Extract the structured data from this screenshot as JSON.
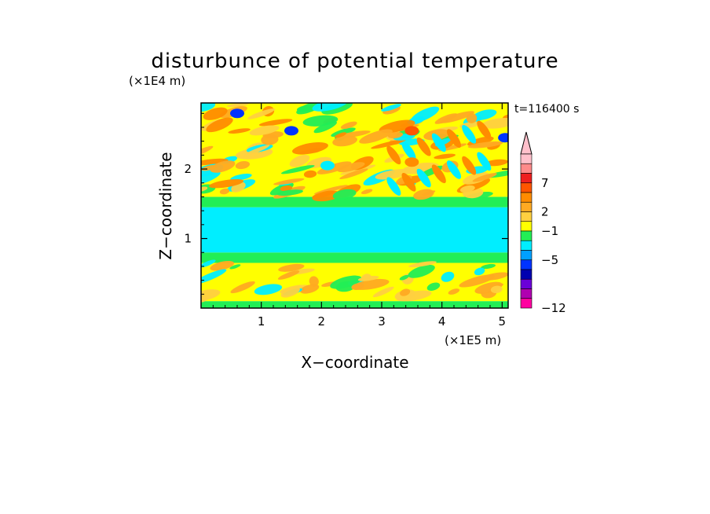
{
  "chart_data": {
    "type": "heatmap",
    "title": "disturbunce of potential temperature",
    "time_label": "t=116400 s",
    "xlabel": "X−coordinate",
    "ylabel": "Z−coordinate",
    "x_unit": "(×1E5 m)",
    "y_unit": "(×1E4 m)",
    "xlim": [
      0,
      5.1
    ],
    "ylim": [
      0,
      2.95
    ],
    "x_ticks": [
      1,
      2,
      3,
      4,
      5
    ],
    "y_ticks": [
      1,
      2
    ],
    "x_tick_labels": [
      "1",
      "2",
      "3",
      "4",
      "5"
    ],
    "y_tick_labels": [
      "1",
      "2"
    ],
    "colorbar": {
      "labeled_ticks": [
        {
          "value": 7,
          "label": "7"
        },
        {
          "value": 2,
          "label": "2"
        },
        {
          "value": -1,
          "label": "−1"
        },
        {
          "value": -5,
          "label": "−5"
        },
        {
          "value": -12,
          "label": "−12"
        }
      ],
      "colors_top_to_bottom": [
        "#ffc0cb",
        "#ff8a8a",
        "#ee2020",
        "#ff5500",
        "#ff8c00",
        "#ffaa22",
        "#ffd040",
        "#ffff00",
        "#22ee55",
        "#00eeff",
        "#00a0ff",
        "#0033ff",
        "#0000b0",
        "#6a00d8",
        "#b000b0",
        "#ff00a0"
      ],
      "extend_arrow_color": "#ffc0cb"
    },
    "layers": [
      {
        "z_range": [
          0.0,
          0.1
        ],
        "dominant": "#22ee55"
      },
      {
        "z_range": [
          0.1,
          0.65
        ],
        "dominant": "#ffff00"
      },
      {
        "z_range": [
          0.65,
          0.8
        ],
        "dominant": "#22ee55"
      },
      {
        "z_range": [
          0.8,
          1.45
        ],
        "dominant": "#00eeff"
      },
      {
        "z_range": [
          1.45,
          1.6
        ],
        "dominant": "#22ee55"
      },
      {
        "z_range": [
          1.6,
          2.95
        ],
        "dominant": "#ffff00"
      }
    ],
    "notable_features": [
      {
        "x": 0.6,
        "z": 2.8,
        "value_color": "#0033ff"
      },
      {
        "x": 1.5,
        "z": 2.55,
        "value_color": "#0033ff"
      },
      {
        "x": 5.05,
        "z": 2.45,
        "value_color": "#0033ff"
      },
      {
        "x": 3.5,
        "z": 2.55,
        "value_color": "#ff5500"
      },
      {
        "x": 3.5,
        "z": 2.1,
        "value_color": "#ff8c00"
      },
      {
        "x": 2.1,
        "z": 2.05,
        "value_color": "#00eeff"
      }
    ]
  }
}
